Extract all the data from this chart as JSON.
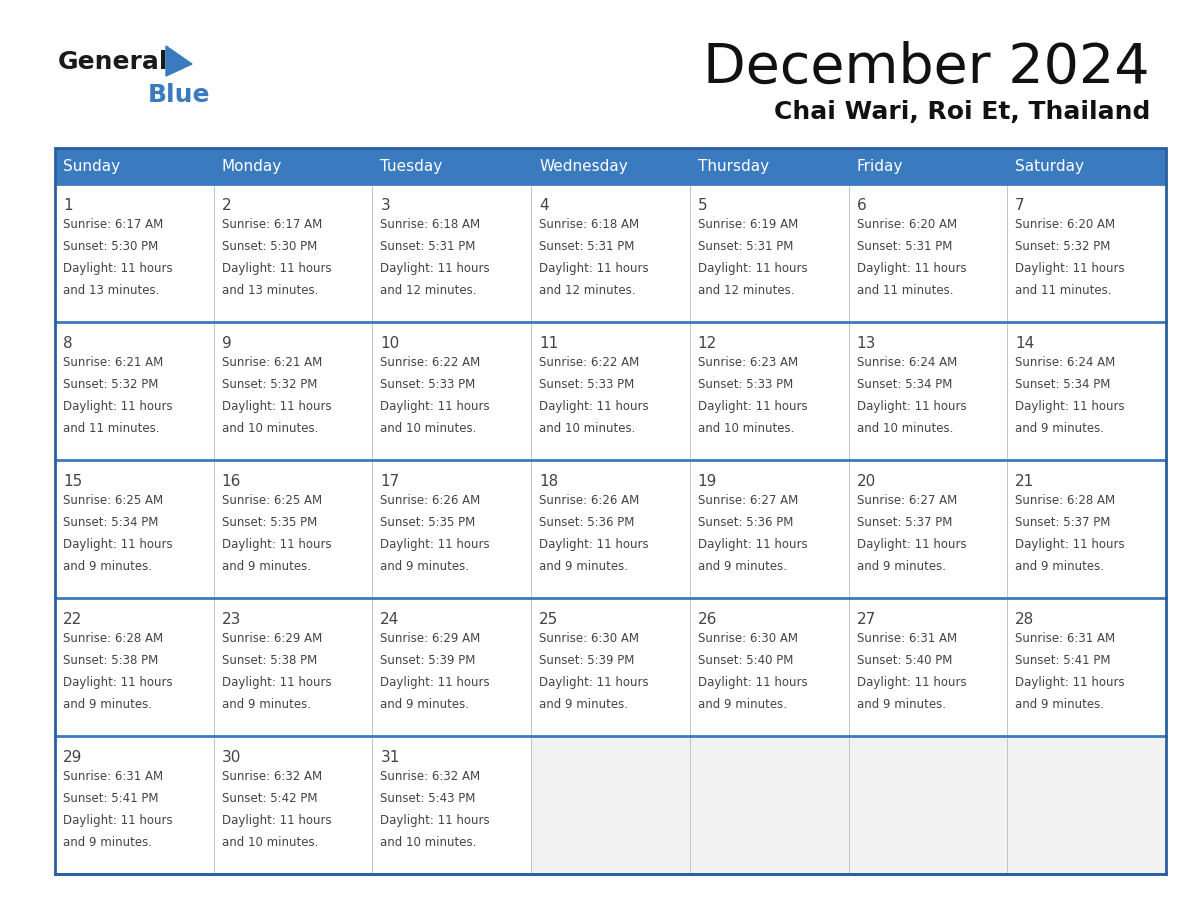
{
  "title": "December 2024",
  "subtitle": "Chai Wari, Roi Et, Thailand",
  "header_color": "#3a7abf",
  "header_text_color": "#ffffff",
  "cell_bg_color": "#ffffff",
  "empty_cell_bg": "#f2f2f2",
  "border_color": "#2a5f9e",
  "row_border_color": "#3a7abf",
  "cell_border_color": "#c0c0c0",
  "text_color": "#444444",
  "days_of_week": [
    "Sunday",
    "Monday",
    "Tuesday",
    "Wednesday",
    "Thursday",
    "Friday",
    "Saturday"
  ],
  "calendar_data": [
    [
      {
        "day": 1,
        "sunrise": "6:17 AM",
        "sunset": "5:30 PM",
        "daylight": "11 hours and 13 minutes"
      },
      {
        "day": 2,
        "sunrise": "6:17 AM",
        "sunset": "5:30 PM",
        "daylight": "11 hours and 13 minutes"
      },
      {
        "day": 3,
        "sunrise": "6:18 AM",
        "sunset": "5:31 PM",
        "daylight": "11 hours and 12 minutes"
      },
      {
        "day": 4,
        "sunrise": "6:18 AM",
        "sunset": "5:31 PM",
        "daylight": "11 hours and 12 minutes"
      },
      {
        "day": 5,
        "sunrise": "6:19 AM",
        "sunset": "5:31 PM",
        "daylight": "11 hours and 12 minutes"
      },
      {
        "day": 6,
        "sunrise": "6:20 AM",
        "sunset": "5:31 PM",
        "daylight": "11 hours and 11 minutes"
      },
      {
        "day": 7,
        "sunrise": "6:20 AM",
        "sunset": "5:32 PM",
        "daylight": "11 hours and 11 minutes"
      }
    ],
    [
      {
        "day": 8,
        "sunrise": "6:21 AM",
        "sunset": "5:32 PM",
        "daylight": "11 hours and 11 minutes"
      },
      {
        "day": 9,
        "sunrise": "6:21 AM",
        "sunset": "5:32 PM",
        "daylight": "11 hours and 10 minutes"
      },
      {
        "day": 10,
        "sunrise": "6:22 AM",
        "sunset": "5:33 PM",
        "daylight": "11 hours and 10 minutes"
      },
      {
        "day": 11,
        "sunrise": "6:22 AM",
        "sunset": "5:33 PM",
        "daylight": "11 hours and 10 minutes"
      },
      {
        "day": 12,
        "sunrise": "6:23 AM",
        "sunset": "5:33 PM",
        "daylight": "11 hours and 10 minutes"
      },
      {
        "day": 13,
        "sunrise": "6:24 AM",
        "sunset": "5:34 PM",
        "daylight": "11 hours and 10 minutes"
      },
      {
        "day": 14,
        "sunrise": "6:24 AM",
        "sunset": "5:34 PM",
        "daylight": "11 hours and 9 minutes"
      }
    ],
    [
      {
        "day": 15,
        "sunrise": "6:25 AM",
        "sunset": "5:34 PM",
        "daylight": "11 hours and 9 minutes"
      },
      {
        "day": 16,
        "sunrise": "6:25 AM",
        "sunset": "5:35 PM",
        "daylight": "11 hours and 9 minutes"
      },
      {
        "day": 17,
        "sunrise": "6:26 AM",
        "sunset": "5:35 PM",
        "daylight": "11 hours and 9 minutes"
      },
      {
        "day": 18,
        "sunrise": "6:26 AM",
        "sunset": "5:36 PM",
        "daylight": "11 hours and 9 minutes"
      },
      {
        "day": 19,
        "sunrise": "6:27 AM",
        "sunset": "5:36 PM",
        "daylight": "11 hours and 9 minutes"
      },
      {
        "day": 20,
        "sunrise": "6:27 AM",
        "sunset": "5:37 PM",
        "daylight": "11 hours and 9 minutes"
      },
      {
        "day": 21,
        "sunrise": "6:28 AM",
        "sunset": "5:37 PM",
        "daylight": "11 hours and 9 minutes"
      }
    ],
    [
      {
        "day": 22,
        "sunrise": "6:28 AM",
        "sunset": "5:38 PM",
        "daylight": "11 hours and 9 minutes"
      },
      {
        "day": 23,
        "sunrise": "6:29 AM",
        "sunset": "5:38 PM",
        "daylight": "11 hours and 9 minutes"
      },
      {
        "day": 24,
        "sunrise": "6:29 AM",
        "sunset": "5:39 PM",
        "daylight": "11 hours and 9 minutes"
      },
      {
        "day": 25,
        "sunrise": "6:30 AM",
        "sunset": "5:39 PM",
        "daylight": "11 hours and 9 minutes"
      },
      {
        "day": 26,
        "sunrise": "6:30 AM",
        "sunset": "5:40 PM",
        "daylight": "11 hours and 9 minutes"
      },
      {
        "day": 27,
        "sunrise": "6:31 AM",
        "sunset": "5:40 PM",
        "daylight": "11 hours and 9 minutes"
      },
      {
        "day": 28,
        "sunrise": "6:31 AM",
        "sunset": "5:41 PM",
        "daylight": "11 hours and 9 minutes"
      }
    ],
    [
      {
        "day": 29,
        "sunrise": "6:31 AM",
        "sunset": "5:41 PM",
        "daylight": "11 hours and 9 minutes"
      },
      {
        "day": 30,
        "sunrise": "6:32 AM",
        "sunset": "5:42 PM",
        "daylight": "11 hours and 10 minutes"
      },
      {
        "day": 31,
        "sunrise": "6:32 AM",
        "sunset": "5:43 PM",
        "daylight": "11 hours and 10 minutes"
      },
      null,
      null,
      null,
      null
    ]
  ],
  "logo_general_color": "#1a1a1a",
  "logo_blue_color": "#3a7abf",
  "title_fontsize": 40,
  "subtitle_fontsize": 18,
  "header_fontsize": 11,
  "day_num_fontsize": 11,
  "cell_text_fontsize": 8.5
}
